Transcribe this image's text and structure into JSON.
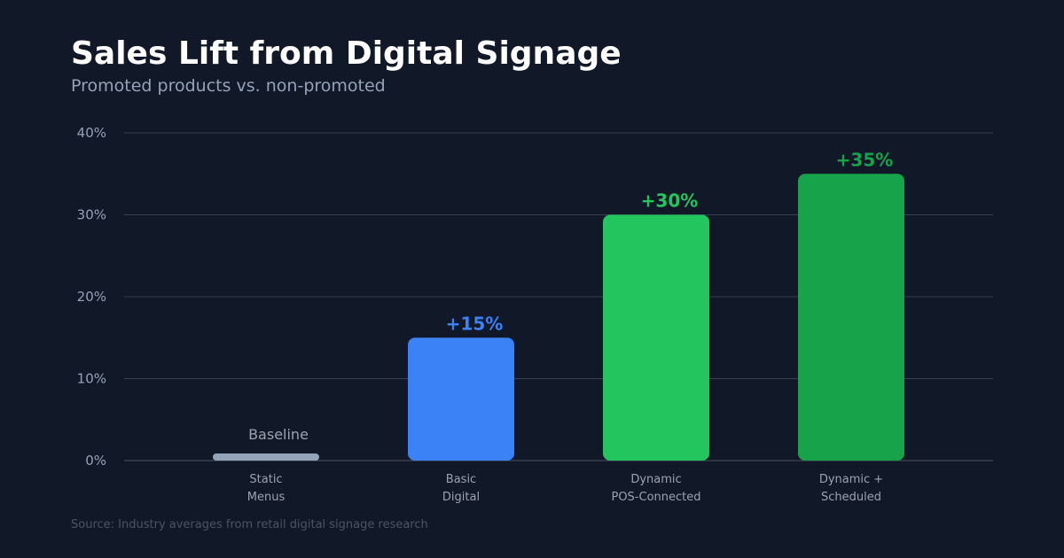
{
  "chart_data": {
    "type": "bar",
    "title": "Sales Lift from Digital Signage",
    "subtitle": "Promoted products vs. non-promoted",
    "source": "Source: Industry averages from retail digital signage research",
    "categories": [
      [
        "Static",
        "Menus"
      ],
      [
        "Basic",
        "Digital"
      ],
      [
        "Dynamic",
        "POS-Connected"
      ],
      [
        "Dynamic +",
        "Scheduled"
      ]
    ],
    "values": [
      0,
      15,
      30,
      35
    ],
    "value_labels": [
      "Baseline",
      "+15%",
      "+30%",
      "+35%"
    ],
    "colors": [
      "#94a3b8",
      "#3b82f6",
      "#22c55e",
      "#16a34a"
    ],
    "ylim": [
      0,
      40
    ],
    "yticks": [
      "0%",
      "10%",
      "20%",
      "30%",
      "40%"
    ],
    "grid": true,
    "xlabel": "",
    "ylabel": ""
  }
}
